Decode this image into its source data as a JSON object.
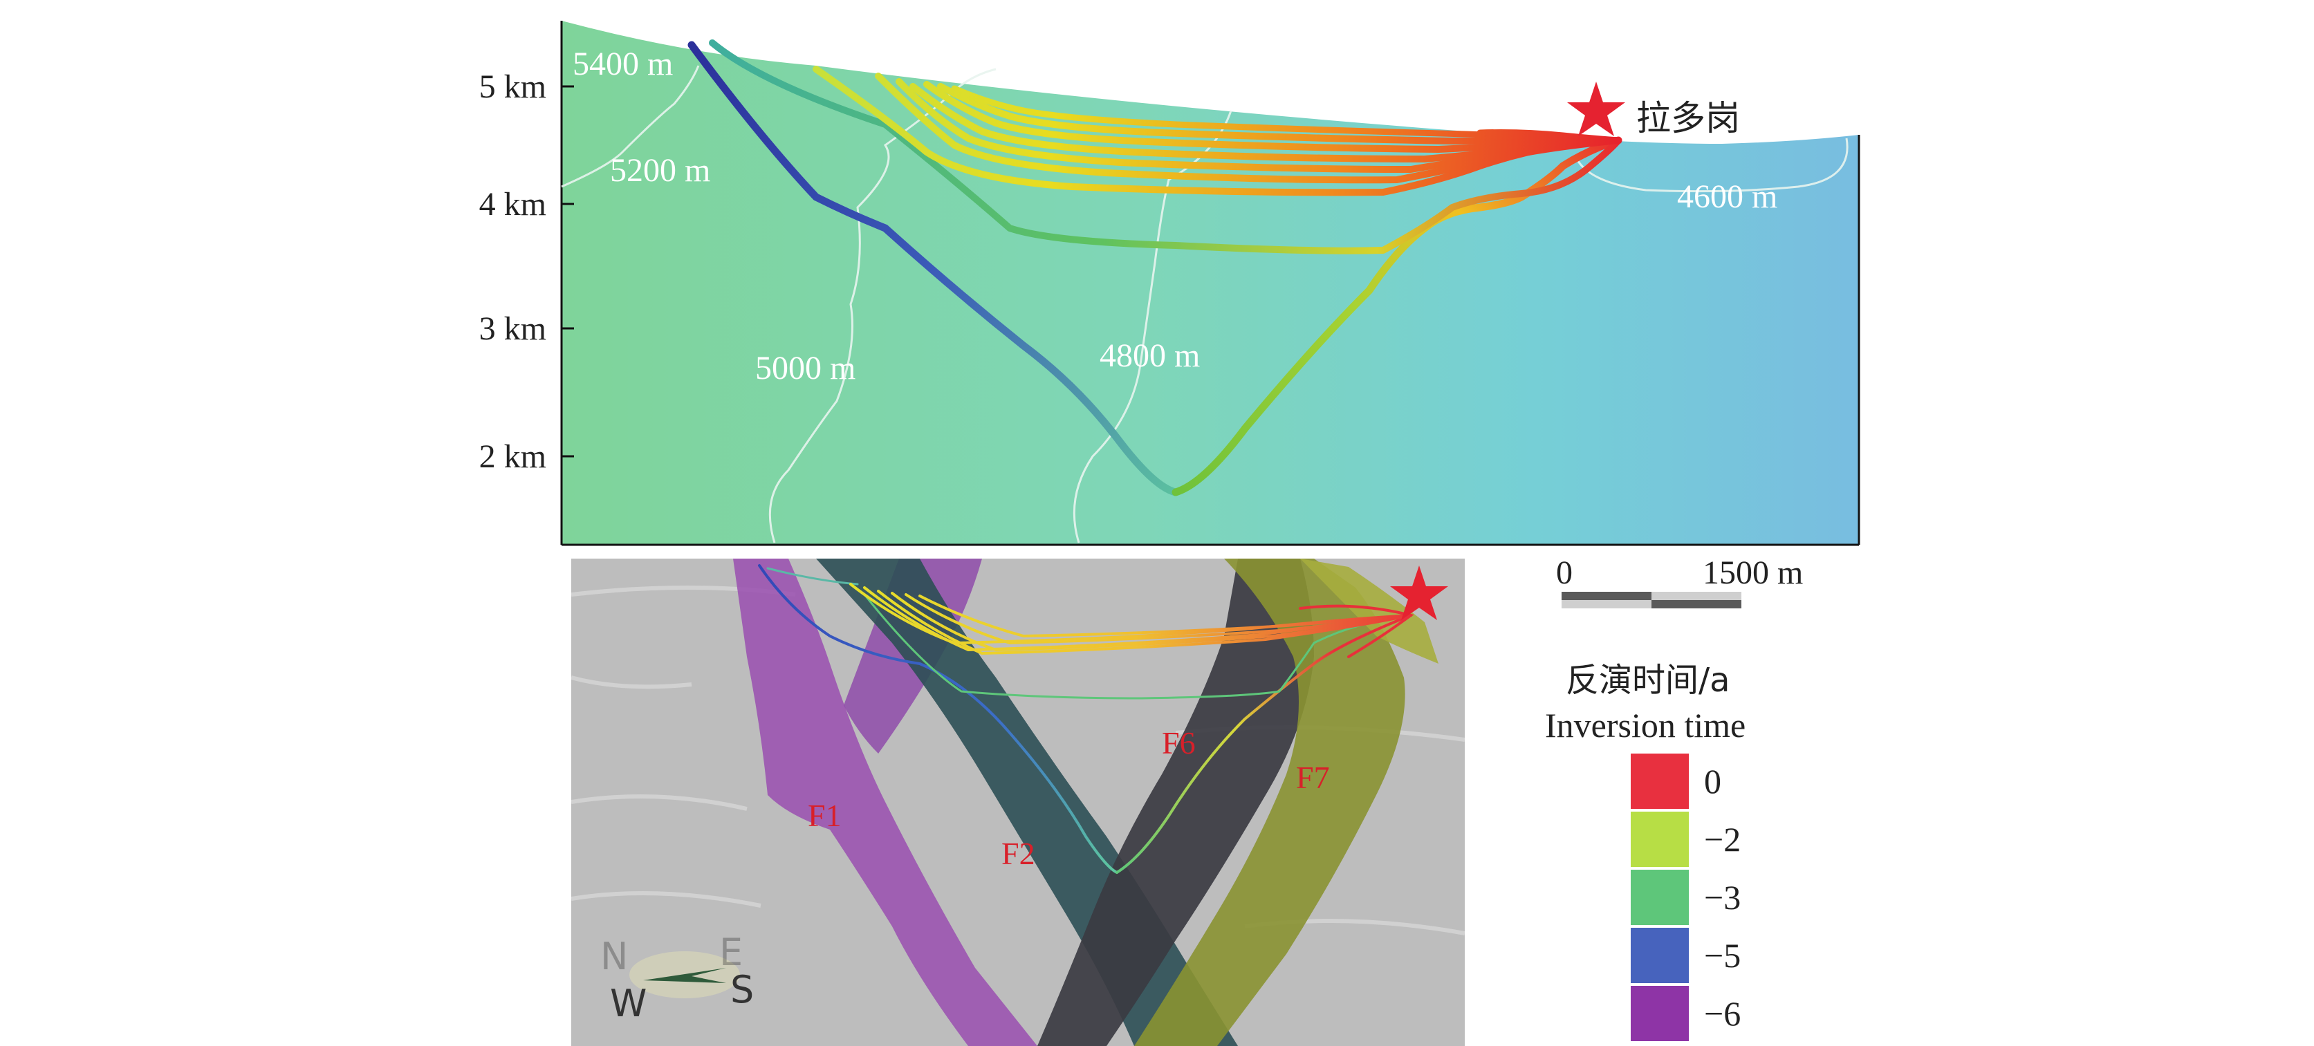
{
  "depth_axis": {
    "ticks": [
      "5 km",
      "4 km",
      "3 km",
      "2 km"
    ]
  },
  "contours": {
    "c5400": "5400 m",
    "c5200": "5200 m",
    "c5000": "5000 m",
    "c4800": "4800 m",
    "c4600": "4600 m"
  },
  "place": {
    "name": "拉多岗"
  },
  "faults": [
    "F1",
    "F2",
    "F6",
    "F7"
  ],
  "compass": {
    "n": "N",
    "e": "E",
    "w": "W",
    "s": "S"
  },
  "scale_bar": {
    "start": "0",
    "end": "1500 m"
  },
  "legend": {
    "title_cn": "反演时间/a",
    "title_en": "Inversion time",
    "items": [
      {
        "label": "0",
        "color": "#e8303f"
      },
      {
        "label": "−2",
        "color": "#b7de45"
      },
      {
        "label": "−3",
        "color": "#5ec67a"
      },
      {
        "label": "−5",
        "color": "#4763bd"
      },
      {
        "label": "−6",
        "color": "#8e34a6"
      }
    ]
  },
  "colors": {
    "terrain_green": "#7fd49a",
    "terrain_cyan": "#76c8e0",
    "lower_background": "#bdbdbd",
    "star": "#e52230"
  }
}
